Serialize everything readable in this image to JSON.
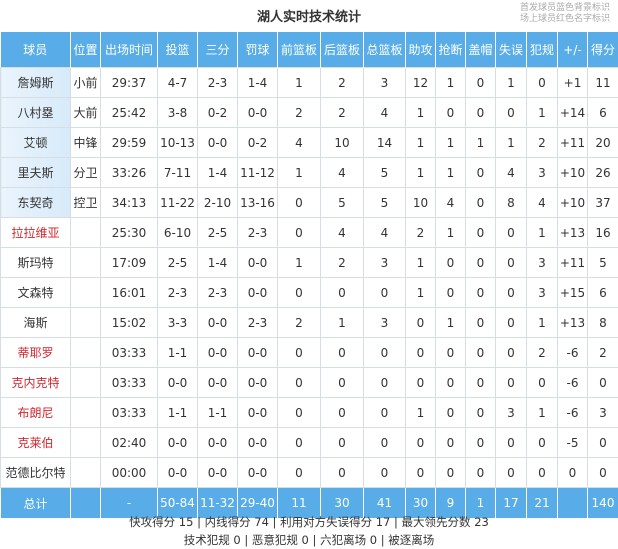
{
  "title": "湖人实时技术统计",
  "legend": [
    "首发球员蓝色背景标识",
    "场上球员红色名字标识"
  ],
  "colors": {
    "header": "#58ade9",
    "on_court_name": "#d3262d",
    "starter_bg": "#d7eaf9"
  },
  "columns": [
    "球员",
    "位置",
    "出场时间",
    "投篮",
    "三分",
    "罚球",
    "前篮板",
    "后篮板",
    "总篮板",
    "助攻",
    "抢断",
    "盖帽",
    "失误",
    "犯规",
    "+/-",
    "得分"
  ],
  "players": [
    {
      "cells": [
        "詹姆斯",
        "小前",
        "29:37",
        "4-7",
        "2-3",
        "1-4",
        "1",
        "2",
        "3",
        "12",
        "1",
        "0",
        "1",
        "0",
        "+1",
        "11"
      ],
      "starter": true,
      "on_court": false
    },
    {
      "cells": [
        "八村塁",
        "大前",
        "25:42",
        "3-8",
        "0-2",
        "0-0",
        "2",
        "2",
        "4",
        "1",
        "0",
        "0",
        "0",
        "1",
        "+14",
        "6"
      ],
      "starter": true,
      "on_court": false
    },
    {
      "cells": [
        "艾顿",
        "中锋",
        "29:59",
        "10-13",
        "0-0",
        "0-2",
        "4",
        "10",
        "14",
        "1",
        "1",
        "1",
        "1",
        "2",
        "+11",
        "20"
      ],
      "starter": true,
      "on_court": false
    },
    {
      "cells": [
        "里夫斯",
        "分卫",
        "33:26",
        "7-11",
        "1-4",
        "11-12",
        "1",
        "4",
        "5",
        "1",
        "1",
        "0",
        "4",
        "3",
        "+10",
        "26"
      ],
      "starter": true,
      "on_court": false
    },
    {
      "cells": [
        "东契奇",
        "控卫",
        "34:13",
        "11-22",
        "2-10",
        "13-16",
        "0",
        "5",
        "5",
        "10",
        "4",
        "0",
        "8",
        "4",
        "+10",
        "37"
      ],
      "starter": true,
      "on_court": false
    },
    {
      "cells": [
        "拉拉维亚",
        "",
        "25:30",
        "6-10",
        "2-5",
        "2-3",
        "0",
        "4",
        "4",
        "2",
        "1",
        "0",
        "0",
        "1",
        "+13",
        "16"
      ],
      "starter": false,
      "on_court": true
    },
    {
      "cells": [
        "斯玛特",
        "",
        "17:09",
        "2-5",
        "1-4",
        "0-0",
        "1",
        "2",
        "3",
        "1",
        "0",
        "0",
        "0",
        "3",
        "+11",
        "5"
      ],
      "starter": false,
      "on_court": false
    },
    {
      "cells": [
        "文森特",
        "",
        "16:01",
        "2-3",
        "2-3",
        "0-0",
        "0",
        "0",
        "0",
        "1",
        "0",
        "0",
        "0",
        "3",
        "+15",
        "6"
      ],
      "starter": false,
      "on_court": false
    },
    {
      "cells": [
        "海斯",
        "",
        "15:02",
        "3-3",
        "0-0",
        "2-3",
        "2",
        "1",
        "3",
        "0",
        "1",
        "0",
        "0",
        "1",
        "+13",
        "8"
      ],
      "starter": false,
      "on_court": false
    },
    {
      "cells": [
        "蒂耶罗",
        "",
        "03:33",
        "1-1",
        "0-0",
        "0-0",
        "0",
        "0",
        "0",
        "0",
        "0",
        "0",
        "0",
        "2",
        "-6",
        "2"
      ],
      "starter": false,
      "on_court": true
    },
    {
      "cells": [
        "克内克特",
        "",
        "03:33",
        "0-0",
        "0-0",
        "0-0",
        "0",
        "0",
        "0",
        "0",
        "0",
        "0",
        "0",
        "0",
        "-6",
        "0"
      ],
      "starter": false,
      "on_court": true
    },
    {
      "cells": [
        "布朗尼",
        "",
        "03:33",
        "1-1",
        "1-1",
        "0-0",
        "0",
        "0",
        "0",
        "1",
        "0",
        "0",
        "3",
        "1",
        "-6",
        "3"
      ],
      "starter": false,
      "on_court": true
    },
    {
      "cells": [
        "克莱伯",
        "",
        "02:40",
        "0-0",
        "0-0",
        "0-0",
        "0",
        "0",
        "0",
        "0",
        "0",
        "0",
        "0",
        "0",
        "-5",
        "0"
      ],
      "starter": false,
      "on_court": true
    },
    {
      "cells": [
        "范德比尔特",
        "",
        "00:00",
        "0-0",
        "0-0",
        "0-0",
        "0",
        "0",
        "0",
        "0",
        "0",
        "0",
        "0",
        "0",
        "0",
        "0"
      ],
      "starter": false,
      "on_court": false
    }
  ],
  "totals": [
    "总计",
    "",
    "-",
    "50-84",
    "11-32",
    "29-40",
    "11",
    "30",
    "41",
    "30",
    "9",
    "1",
    "17",
    "21",
    "",
    "140"
  ],
  "footer": {
    "line1": "快攻得分 15 | 内线得分 74 | 利用对方失误得分 17 | 最大领先分数 23",
    "line2": "技术犯规 0 | 恶意犯规 0 | 六犯离场 0 | 被逐离场"
  }
}
